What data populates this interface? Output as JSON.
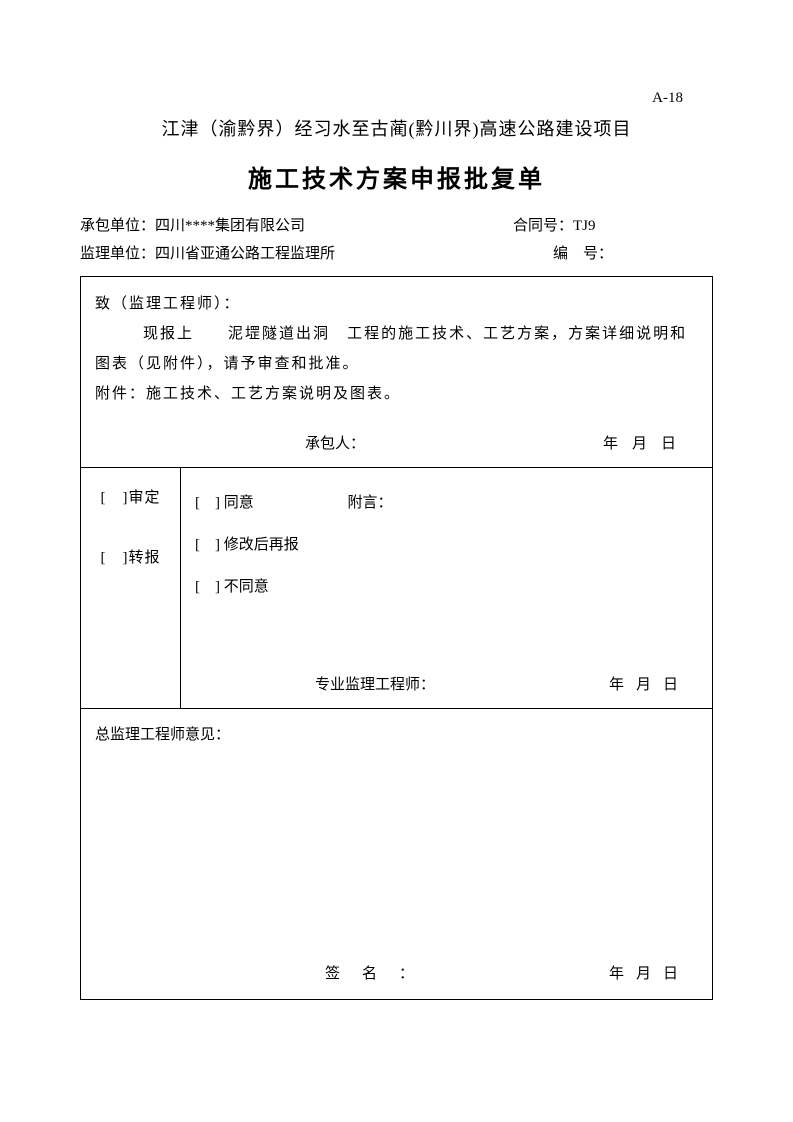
{
  "doc_number": "A-18",
  "project_title": "江津（渝黔界）经习水至古蔺(黔川界)高速公路建设项目",
  "form_title": "施工技术方案申报批复单",
  "header": {
    "contractor_label": "承包单位：",
    "contractor_value": "四川****集团有限公司",
    "contract_no_label": "合同号：",
    "contract_no_value": "TJ9",
    "supervisor_label": "监理单位：",
    "supervisor_value": "四川省亚通公路工程监理所",
    "serial_no_label": "编　号："
  },
  "section1": {
    "to_label": "致（监理工程师）：",
    "line1_prefix": "现报上",
    "line1_project": "泥堽隧道出洞",
    "line1_suffix": "工程的施工技术、工艺方案，方案详细说明和",
    "line2": "图表（见附件），请予审查和批准。",
    "attachment_label": "附件：",
    "attachment_text": "施工技术、工艺方案说明及图表。",
    "contractor_sign_label": "承包人：",
    "date_text": "年月日"
  },
  "section2": {
    "left_option1": "[　]审定",
    "left_option2": "[　]转报",
    "right_option1": "[　] 同意",
    "right_option1_note": "附言：",
    "right_option2": "[　] 修改后再报",
    "right_option3": "[　] 不同意",
    "engineer_sign_label": "专业监理工程师：",
    "date_text": "年月日"
  },
  "section3": {
    "chief_label": "总监理工程师意见：",
    "sign_label": "签名：",
    "date_text": "年月日"
  }
}
